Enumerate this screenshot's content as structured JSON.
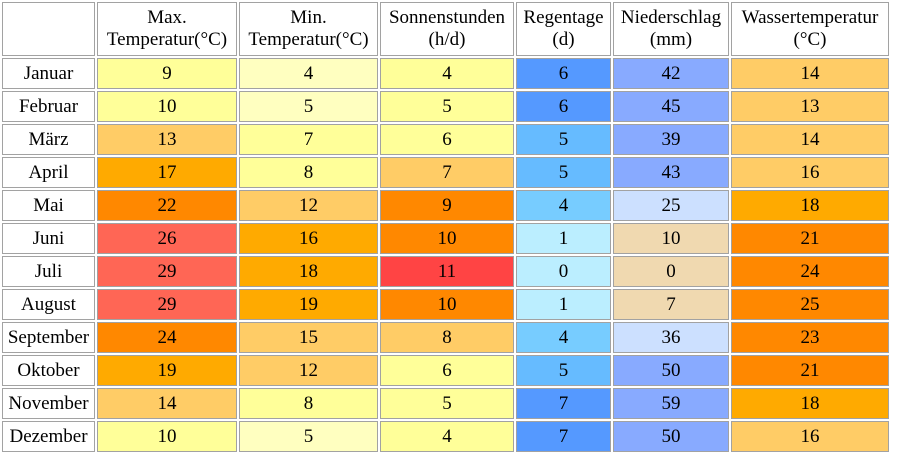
{
  "chart_data": {
    "type": "table",
    "columns": [
      {
        "key": "max_temp",
        "line1": "Max.",
        "line2": "Temperatur(°C)"
      },
      {
        "key": "min_temp",
        "line1": "Min.",
        "line2": "Temperatur(°C)"
      },
      {
        "key": "sun",
        "line1": "Sonnenstunden",
        "line2": "(h/d)"
      },
      {
        "key": "rain_days",
        "line1": "Regentage",
        "line2": "(d)"
      },
      {
        "key": "precip",
        "line1": "Niederschlag",
        "line2": "(mm)"
      },
      {
        "key": "water_temp",
        "line1": "Wassertemperatur",
        "line2": "(°C)"
      }
    ],
    "rows": [
      {
        "month": "Januar",
        "values": [
          9,
          4,
          4,
          6,
          42,
          14
        ]
      },
      {
        "month": "Februar",
        "values": [
          10,
          5,
          5,
          6,
          45,
          13
        ]
      },
      {
        "month": "März",
        "values": [
          13,
          7,
          6,
          5,
          39,
          14
        ]
      },
      {
        "month": "April",
        "values": [
          17,
          8,
          7,
          5,
          43,
          16
        ]
      },
      {
        "month": "Mai",
        "values": [
          22,
          12,
          9,
          4,
          25,
          18
        ]
      },
      {
        "month": "Juni",
        "values": [
          26,
          16,
          10,
          1,
          10,
          21
        ]
      },
      {
        "month": "Juli",
        "values": [
          29,
          18,
          11,
          0,
          0,
          24
        ]
      },
      {
        "month": "August",
        "values": [
          29,
          19,
          10,
          1,
          7,
          25
        ]
      },
      {
        "month": "September",
        "values": [
          24,
          15,
          8,
          4,
          36,
          23
        ]
      },
      {
        "month": "Oktober",
        "values": [
          19,
          12,
          6,
          5,
          50,
          21
        ]
      },
      {
        "month": "November",
        "values": [
          14,
          8,
          5,
          7,
          59,
          18
        ]
      },
      {
        "month": "Dezember",
        "values": [
          10,
          5,
          4,
          7,
          50,
          16
        ]
      }
    ],
    "cell_colors": [
      [
        "#ffff99",
        "#ffffc0",
        "#ffff99",
        "#5599ff",
        "#88aaff",
        "#ffcc66"
      ],
      [
        "#ffff99",
        "#ffffc0",
        "#ffff99",
        "#5599ff",
        "#88aaff",
        "#ffcc66"
      ],
      [
        "#ffcc66",
        "#ffff99",
        "#ffff99",
        "#66bbff",
        "#88aaff",
        "#ffcc66"
      ],
      [
        "#ffaa00",
        "#ffff99",
        "#ffcc66",
        "#66bbff",
        "#88aaff",
        "#ffcc66"
      ],
      [
        "#ff8800",
        "#ffcc66",
        "#ff8800",
        "#77ccff",
        "#cce0ff",
        "#ffaa00"
      ],
      [
        "#ff6655",
        "#ffaa00",
        "#ff8800",
        "#bbeeff",
        "#f0d9b0",
        "#ff8800"
      ],
      [
        "#ff6655",
        "#ffaa00",
        "#ff4444",
        "#bbeeff",
        "#f0d9b0",
        "#ff8800"
      ],
      [
        "#ff6655",
        "#ffaa00",
        "#ff8800",
        "#bbeeff",
        "#f0d9b0",
        "#ff8800"
      ],
      [
        "#ff8800",
        "#ffcc66",
        "#ffcc66",
        "#77ccff",
        "#cce0ff",
        "#ff8800"
      ],
      [
        "#ffaa00",
        "#ffcc66",
        "#ffff99",
        "#66bbff",
        "#88aaff",
        "#ff8800"
      ],
      [
        "#ffcc66",
        "#ffff99",
        "#ffff99",
        "#5599ff",
        "#88aaff",
        "#ffaa00"
      ],
      [
        "#ffff99",
        "#ffffc0",
        "#ffff99",
        "#5599ff",
        "#88aaff",
        "#ffcc66"
      ]
    ]
  }
}
